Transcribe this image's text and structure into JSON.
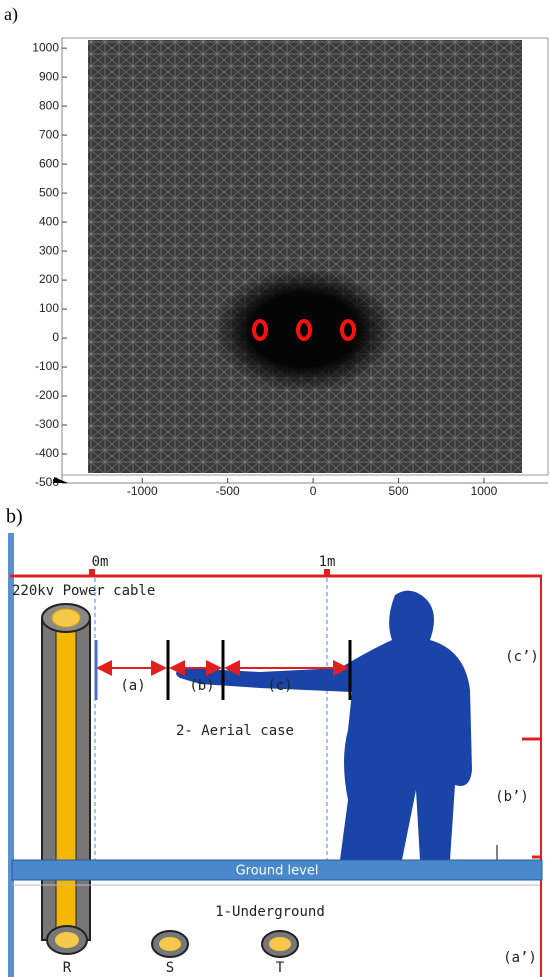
{
  "panel_a": {
    "label": "a)",
    "xlim": [
      -1470,
      1375
    ],
    "ylim": [
      -500,
      1035
    ],
    "xticks": [
      -1000,
      -500,
      0,
      500,
      1000
    ],
    "yticks": [
      1000,
      900,
      800,
      700,
      600,
      500,
      400,
      300,
      200,
      100,
      0,
      -100,
      -200,
      -300,
      -400,
      -500
    ]
  },
  "panel_b": {
    "label": "b)",
    "marker_0": "0m",
    "marker_1": "1m",
    "cable": "220kv Power cable",
    "gap_a": "(a)",
    "gap_b": "(b)",
    "gap_c": "(c)",
    "aerial": "2- Aerial case",
    "height_c": "(c’)",
    "height_b": "(b’)",
    "height_a": "(a’)",
    "ground": "Ground level",
    "underground": "1-Underground",
    "phases": [
      "R",
      "S",
      "T"
    ]
  }
}
